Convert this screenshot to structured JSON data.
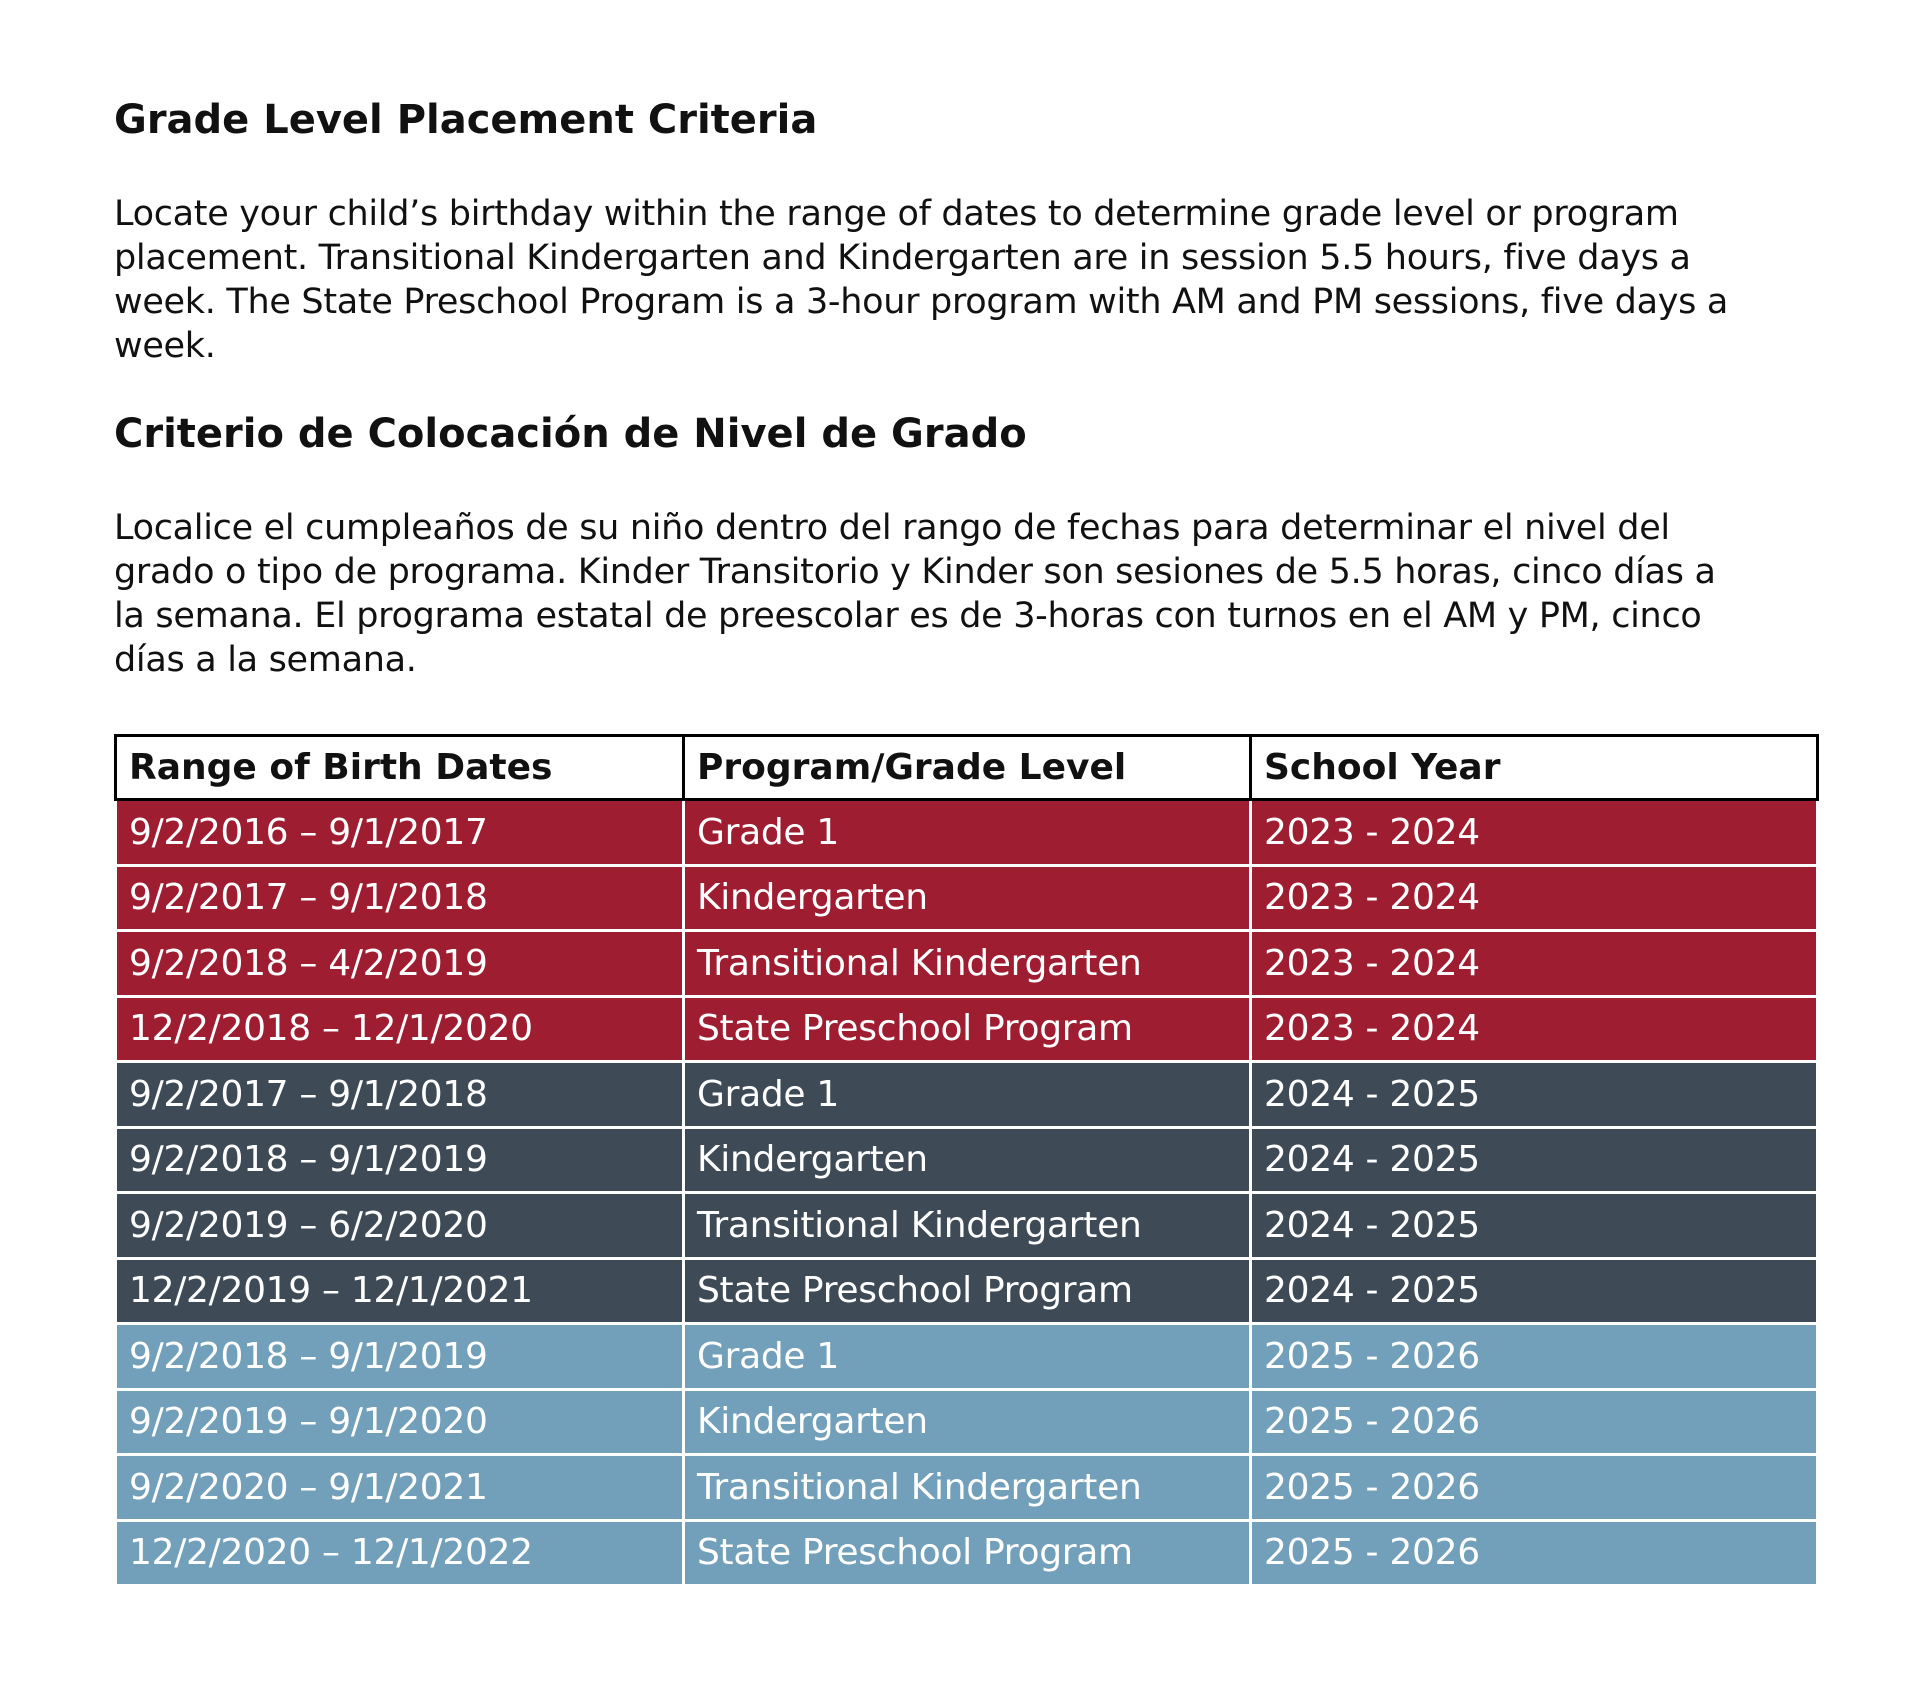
{
  "heading_en": "Grade Level Placement Criteria",
  "paragraph_en": "Locate your child’s birthday within the range of dates to determine grade level or program placement. Transitional Kindergarten and Kindergarten are in session 5.5 hours, five days a week. The State Preschool Program is a 3-hour program with AM and PM sessions, five days a week.",
  "heading_es": "Criterio de Colocación de Nivel de Grado",
  "paragraph_es": "Localice el cumpleaños de su niño dentro del rango de fechas para determinar el nivel del grado o tipo de programa. Kinder Transitorio y Kinder son sesiones de 5.5 horas, cinco días a la semana. El programa estatal de preescolar es de 3-horas con turnos en el AM y PM, cinco días a la semana.",
  "table": {
    "headers": [
      "Range of Birth Dates",
      "Program/Grade Level",
      "School Year"
    ],
    "rows": [
      {
        "range": "9/2/2016 – 9/1/2017",
        "program": "Grade 1",
        "year": "2023 - 2024"
      },
      {
        "range": "9/2/2017 – 9/1/2018",
        "program": "Kindergarten",
        "year": "2023 - 2024"
      },
      {
        "range": "9/2/2018 – 4/2/2019",
        "program": "Transitional Kindergarten",
        "year": "2023 - 2024"
      },
      {
        "range": "12/2/2018 – 12/1/2020",
        "program": "State Preschool Program",
        "year": "2023 - 2024"
      },
      {
        "range": "9/2/2017 – 9/1/2018",
        "program": "Grade 1",
        "year": "2024 - 2025"
      },
      {
        "range": "9/2/2018 – 9/1/2019",
        "program": "Kindergarten",
        "year": "2024 - 2025"
      },
      {
        "range": "9/2/2019 – 6/2/2020",
        "program": "Transitional Kindergarten",
        "year": "2024 - 2025"
      },
      {
        "range": "12/2/2019 – 12/1/2021",
        "program": "State Preschool Program",
        "year": "2024 - 2025"
      },
      {
        "range": "9/2/2018 – 9/1/2019",
        "program": "Grade 1",
        "year": "2025 - 2026"
      },
      {
        "range": "9/2/2019 – 9/1/2020",
        "program": "Kindergarten",
        "year": "2025 - 2026"
      },
      {
        "range": "9/2/2020 – 9/1/2021",
        "program": "Transitional Kindergarten",
        "year": "2025 - 2026"
      },
      {
        "range": "12/2/2020 – 12/1/2022",
        "program": "State Preschool Program",
        "year": "2025 - 2026"
      }
    ],
    "row_colors": {
      "2023 - 2024": "#9e1d31",
      "2024 - 2025": "#3e4a56",
      "2025 - 2026": "#729fba"
    }
  }
}
